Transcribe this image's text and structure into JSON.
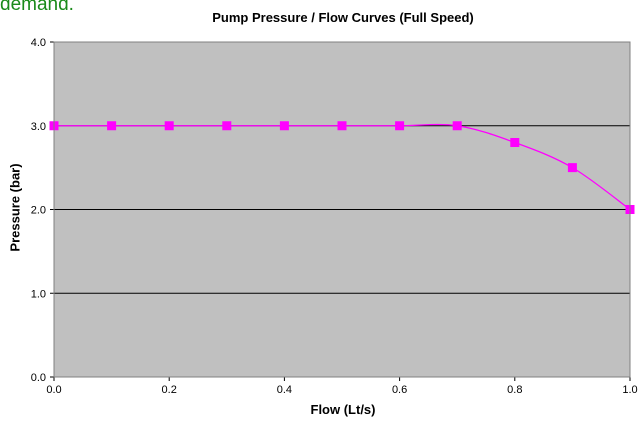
{
  "page": {
    "top_text": "demand."
  },
  "chart_data": {
    "type": "line",
    "title": "Pump Pressure / Flow Curves (Full Speed)",
    "xlabel": "Flow (Lt/s)",
    "ylabel": "Pressure (bar)",
    "xlim": [
      0.0,
      1.0
    ],
    "ylim": [
      0.0,
      4.0
    ],
    "x_ticks": [
      "0.0",
      "0.2",
      "0.4",
      "0.6",
      "0.8",
      "1.0"
    ],
    "y_ticks": [
      "0.0",
      "1.0",
      "2.0",
      "3.0",
      "4.0"
    ],
    "grid": "horizontal",
    "legend": "none",
    "series": [
      {
        "x": [
          0.0,
          0.1,
          0.2,
          0.3,
          0.4,
          0.5,
          0.6,
          0.7,
          0.8,
          0.9,
          1.0
        ],
        "y": [
          3.0,
          3.0,
          3.0,
          3.0,
          3.0,
          3.0,
          3.0,
          3.0,
          2.8,
          2.5,
          2.0
        ],
        "color": "#ff00ff",
        "marker": "square",
        "smooth": true
      }
    ],
    "colors": {
      "plot_background": "#c0c0c0",
      "gridline": "#000000",
      "series": "#ff00ff"
    }
  }
}
